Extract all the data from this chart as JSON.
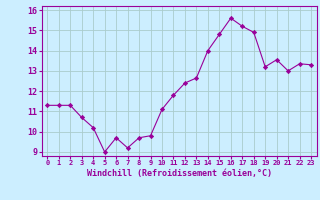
{
  "x": [
    0,
    1,
    2,
    3,
    4,
    5,
    6,
    7,
    8,
    9,
    10,
    11,
    12,
    13,
    14,
    15,
    16,
    17,
    18,
    19,
    20,
    21,
    22,
    23
  ],
  "y": [
    11.3,
    11.3,
    11.3,
    10.7,
    10.2,
    9.0,
    9.7,
    9.2,
    9.7,
    9.8,
    11.1,
    11.8,
    12.4,
    12.65,
    14.0,
    14.8,
    15.6,
    15.2,
    14.9,
    13.2,
    13.55,
    13.0,
    13.35,
    13.3
  ],
  "line_color": "#990099",
  "marker": "D",
  "marker_size": 2.2,
  "bg_color": "#cceeff",
  "grid_color": "#aacccc",
  "xlabel": "Windchill (Refroidissement éolien,°C)",
  "xlabel_color": "#990099",
  "tick_color": "#990099",
  "spine_color": "#990099",
  "xlim": [
    -0.5,
    23.5
  ],
  "ylim": [
    8.8,
    16.2
  ],
  "yticks": [
    9,
    10,
    11,
    12,
    13,
    14,
    15,
    16
  ],
  "xtick_labels": [
    "0",
    "1",
    "2",
    "3",
    "4",
    "5",
    "6",
    "7",
    "8",
    "9",
    "10",
    "11",
    "12",
    "13",
    "14",
    "15",
    "16",
    "17",
    "18",
    "19",
    "20",
    "21",
    "22",
    "23"
  ],
  "xlabel_fontsize": 6.0,
  "xtick_fontsize": 5.0,
  "ytick_fontsize": 6.0
}
